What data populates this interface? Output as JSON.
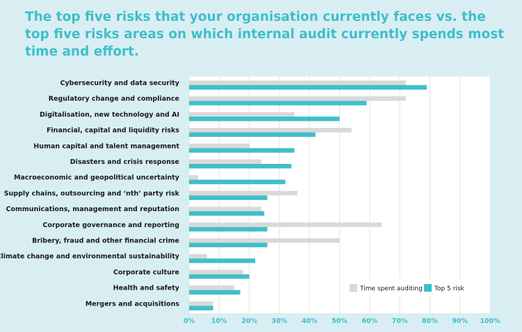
{
  "title": "The top five risks that your organisation currently faces vs. the top five risks areas on which internal audit currently spends most time and effort.",
  "colors": {
    "background": "#d9eef3",
    "title": "#3ebfca",
    "time_spent": "#d9d9d9",
    "top5": "#3ebfca",
    "plot_bg": "#ffffff",
    "grid": "#e3e3e3"
  },
  "chart_data": {
    "type": "bar",
    "orientation": "horizontal",
    "categories": [
      "Cybersecurity and data security",
      "Regulatory change and compliance",
      "Digitalisation, new technology and AI",
      "Financial, capital and liquidity risks",
      "Human capital and talent management",
      "Disasters and crisis response",
      "Macroeconomic and geopolitical uncertainty",
      "Supply chains, outsourcing and ‘nth’ party risk",
      "Communications, management and reputation",
      "Corporate governance and reporting",
      "Bribery, fraud and other financial crime",
      "Climate change and environmental sustainability",
      "Corporate culture",
      "Health and safety",
      "Mergers and acquisitions"
    ],
    "series": [
      {
        "name": "Time spent auditing",
        "values": [
          72,
          72,
          35,
          54,
          20,
          24,
          3,
          36,
          24,
          64,
          50,
          6,
          18,
          15,
          8
        ]
      },
      {
        "name": "Top 5 risk",
        "values": [
          79,
          59,
          50,
          42,
          35,
          34,
          32,
          26,
          25,
          26,
          26,
          22,
          20,
          17,
          8
        ]
      }
    ],
    "xlim": [
      0,
      100
    ],
    "ticks": [
      "0%",
      "10%",
      "20%",
      "30%",
      "40%",
      "50%",
      "60%",
      "70%",
      "80%",
      "90%",
      "100%"
    ],
    "grid": true,
    "legend_position": "bottom-right"
  }
}
